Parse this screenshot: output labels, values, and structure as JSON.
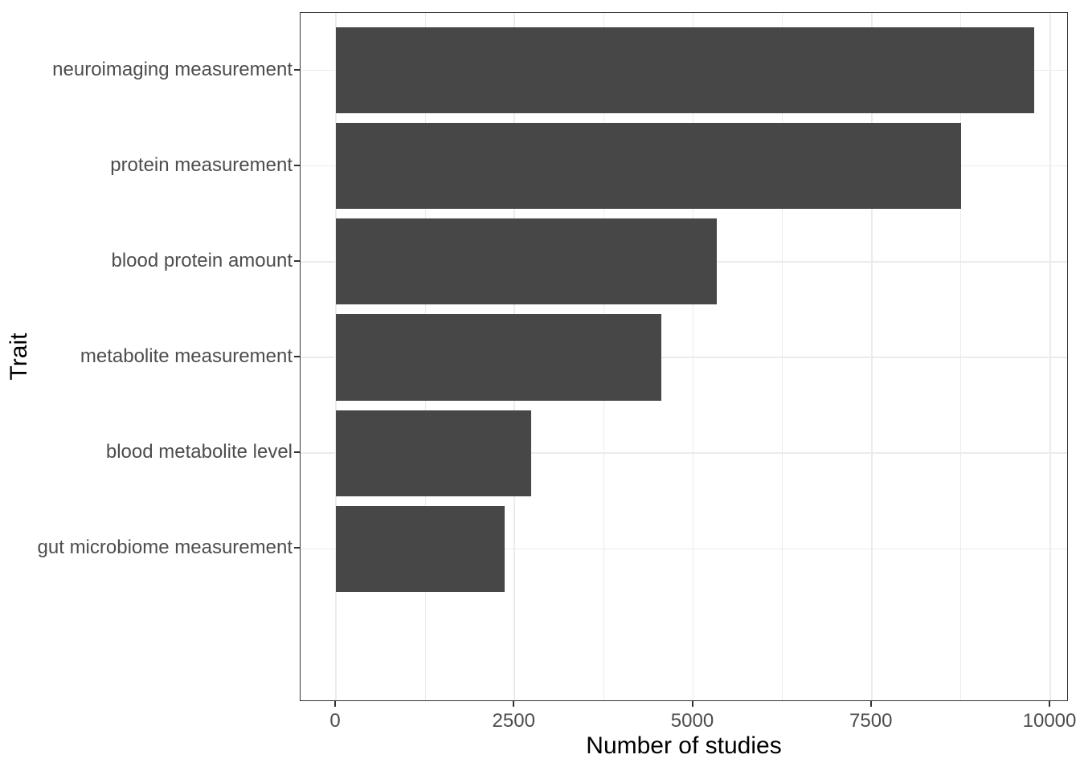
{
  "chart_data": {
    "type": "bar",
    "orientation": "horizontal",
    "title": "",
    "xlabel": "Number of studies",
    "ylabel": "Trait",
    "categories": [
      "neuroimaging measurement",
      "protein measurement",
      "blood protein amount",
      "metabolite measurement",
      "blood metabolite level",
      "gut microbiome measurement"
    ],
    "values": [
      9775,
      8750,
      5330,
      4560,
      2730,
      2360
    ],
    "xlim": [
      0,
      10000
    ],
    "x_ticks": [
      0,
      2500,
      5000,
      7500,
      10000
    ],
    "x_tick_labels": [
      "0",
      "2500",
      "5000",
      "7500",
      "10000"
    ],
    "x_minor_gridlines": [
      1250,
      3750,
      6250,
      8750
    ],
    "grid": "on",
    "legend": "none",
    "bar_color": "#474747",
    "panel_border_color": "#333333",
    "gridline_color": "#ebebeb",
    "axis_text_color": "#4d4d4d",
    "axis_title_color": "#000000",
    "background_color": "#ffffff"
  }
}
